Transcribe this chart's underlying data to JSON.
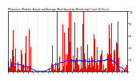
{
  "title": "Milwaukee Weather Actual and Average Wind Speed by Minute mph (Last 24 Hours)",
  "bar_color": "#ff0000",
  "line_color": "#0000ff",
  "background_color": "#ffffff",
  "plot_bg_color": "#ffffff",
  "n_points": 1440,
  "ylim": [
    0,
    10
  ],
  "ytick_labels": [
    "",
    "2",
    "4",
    "6",
    "8",
    "10"
  ],
  "yticks": [
    0,
    2,
    4,
    6,
    8,
    10
  ],
  "seed": 42
}
